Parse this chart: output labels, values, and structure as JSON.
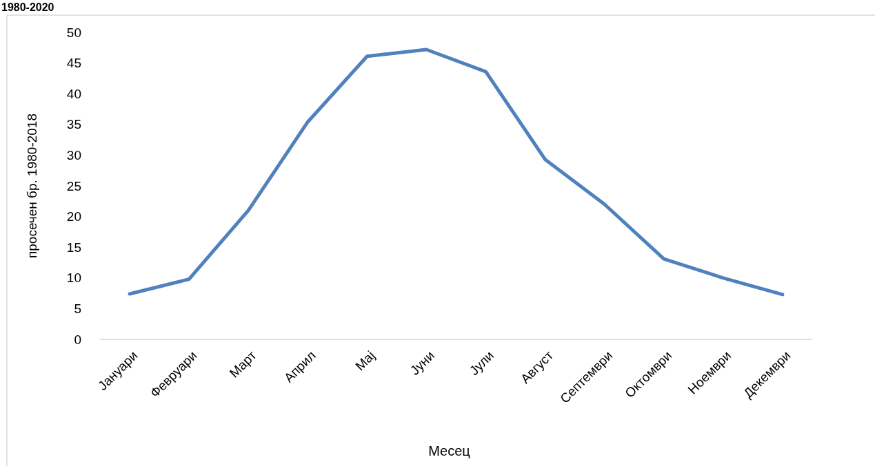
{
  "chart_data": {
    "type": "line",
    "title": "1980-2020",
    "xlabel": "Месец",
    "ylabel": "просечен бр. 1980-2018",
    "categories": [
      "Јануари",
      "Февруари",
      "Март",
      "Април",
      "Мај",
      "Јуни",
      "Јули",
      "Август",
      "Септември",
      "Октомври",
      "Ноември",
      "Декември"
    ],
    "series": [
      {
        "color": "#4f81bd",
        "values": [
          7.4,
          9.8,
          21.0,
          35.4,
          46.1,
          47.2,
          43.6,
          29.3,
          22.0,
          13.1,
          10.0,
          7.3
        ]
      }
    ],
    "ylim": [
      0,
      50
    ],
    "yticks": [
      0,
      5,
      10,
      15,
      20,
      25,
      30,
      35,
      40,
      45,
      50
    ],
    "grid": false,
    "marker": "none",
    "line_style": "solid"
  }
}
